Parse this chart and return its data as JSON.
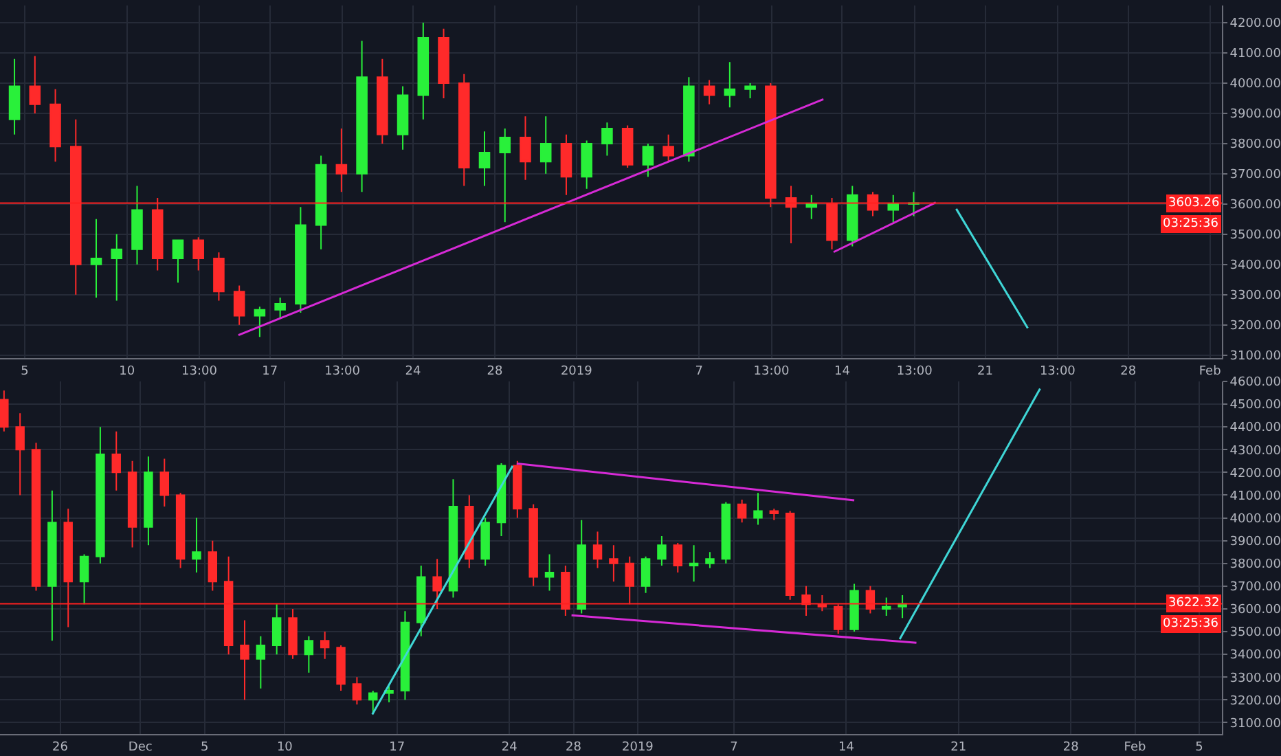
{
  "chart_data": [
    {
      "type": "candlestick",
      "grid": true,
      "x": [
        "2018-12-04T12:00",
        "2018-12-05T12:00",
        "2018-12-06T12:00",
        "2018-12-07T12:00",
        "2018-12-08T12:00",
        "2018-12-09T12:00",
        "2018-12-10T12:00",
        "2018-12-11T12:00",
        "2018-12-12T12:00",
        "2018-12-13T12:00",
        "2018-12-14T12:00",
        "2018-12-15T12:00",
        "2018-12-16T12:00",
        "2018-12-17T12:00",
        "2018-12-18T12:00",
        "2018-12-19T12:00",
        "2018-12-20T12:00",
        "2018-12-21T12:00",
        "2018-12-22T12:00",
        "2018-12-23T12:00",
        "2018-12-24T12:00",
        "2018-12-25T12:00",
        "2018-12-26T12:00",
        "2018-12-27T12:00",
        "2018-12-28T12:00",
        "2018-12-29T12:00",
        "2018-12-30T12:00",
        "2018-12-31T12:00",
        "2019-01-01T12:00",
        "2019-01-02T12:00",
        "2019-01-03T12:00",
        "2019-01-04T12:00",
        "2019-01-05T12:00",
        "2019-01-06T12:00",
        "2019-01-07T12:00",
        "2019-01-08T12:00",
        "2019-01-09T12:00",
        "2019-01-10T12:00",
        "2019-01-11T12:00",
        "2019-01-12T12:00",
        "2019-01-13T12:00",
        "2019-01-14T12:00",
        "2019-01-15T12:00",
        "2019-01-16T12:00",
        "2019-01-17T12:00"
      ],
      "ohlc": [
        [
          3880,
          4080,
          3830,
          3990
        ],
        [
          3990,
          4090,
          3900,
          3930
        ],
        [
          3930,
          3980,
          3740,
          3790
        ],
        [
          3790,
          3880,
          3300,
          3400
        ],
        [
          3400,
          3550,
          3290,
          3420
        ],
        [
          3420,
          3500,
          3280,
          3450
        ],
        [
          3450,
          3660,
          3400,
          3580
        ],
        [
          3580,
          3620,
          3380,
          3420
        ],
        [
          3420,
          3480,
          3340,
          3480
        ],
        [
          3480,
          3490,
          3380,
          3420
        ],
        [
          3420,
          3440,
          3280,
          3310
        ],
        [
          3310,
          3330,
          3200,
          3230
        ],
        [
          3230,
          3260,
          3160,
          3250
        ],
        [
          3250,
          3290,
          3220,
          3270
        ],
        [
          3270,
          3590,
          3240,
          3530
        ],
        [
          3530,
          3760,
          3450,
          3730
        ],
        [
          3730,
          3850,
          3640,
          3700
        ],
        [
          3700,
          4140,
          3640,
          4020
        ],
        [
          4020,
          4080,
          3800,
          3830
        ],
        [
          3830,
          3990,
          3780,
          3960
        ],
        [
          3960,
          4200,
          3880,
          4150
        ],
        [
          4150,
          4180,
          3950,
          4000
        ],
        [
          4000,
          4030,
          3660,
          3720
        ],
        [
          3720,
          3840,
          3660,
          3770
        ],
        [
          3770,
          3850,
          3540,
          3820
        ],
        [
          3820,
          3890,
          3680,
          3740
        ],
        [
          3740,
          3890,
          3700,
          3800
        ],
        [
          3800,
          3830,
          3630,
          3690
        ],
        [
          3690,
          3810,
          3650,
          3800
        ],
        [
          3800,
          3870,
          3760,
          3850
        ],
        [
          3850,
          3860,
          3720,
          3730
        ],
        [
          3730,
          3800,
          3690,
          3790
        ],
        [
          3790,
          3830,
          3740,
          3760
        ],
        [
          3760,
          4020,
          3740,
          3990
        ],
        [
          3990,
          4010,
          3930,
          3960
        ],
        [
          3960,
          4070,
          3920,
          3980
        ],
        [
          3980,
          4000,
          3950,
          3990
        ],
        [
          3990,
          4000,
          3590,
          3620
        ],
        [
          3620,
          3660,
          3470,
          3590
        ],
        [
          3590,
          3630,
          3550,
          3600
        ],
        [
          3600,
          3620,
          3450,
          3480
        ],
        [
          3480,
          3660,
          3460,
          3630
        ],
        [
          3630,
          3640,
          3560,
          3580
        ],
        [
          3580,
          3630,
          3540,
          3600
        ],
        [
          3600,
          3640,
          3560,
          3603.26
        ]
      ],
      "series": [
        {
          "type": "line",
          "x": [
            "2018-12-15T11:00",
            "2019-01-13T02:00"
          ],
          "values": [
            3166,
            3947
          ],
          "color": "#d62ad6",
          "marker": "none"
        },
        {
          "type": "line",
          "x": [
            "2019-01-13T14:00",
            "2019-01-18T14:00"
          ],
          "values": [
            3441,
            3605
          ],
          "color": "#d62ad6",
          "marker": "none"
        },
        {
          "type": "line",
          "x": [
            "2019-01-19T14:00",
            "2019-01-23T02:00"
          ],
          "values": [
            3584,
            3189
          ],
          "color": "#3fd6d6",
          "marker": "none"
        }
      ],
      "ref_lines": [
        {
          "axis": "y",
          "value": 3603.26,
          "label": "3603.26",
          "color": "#ff2020"
        }
      ],
      "annotations": [
        "03:25:36"
      ],
      "xlim": [
        "2018-12-03T19:00",
        "2019-02-01T14:00"
      ],
      "xticks": [
        {
          "value": "2018-12-05",
          "label": "5"
        },
        {
          "value": "2018-12-10",
          "label": "10"
        },
        {
          "value": "2018-12-13T13:00",
          "label": "13:00"
        },
        {
          "value": "2018-12-17",
          "label": "17"
        },
        {
          "value": "2018-12-20T13:00",
          "label": "13:00"
        },
        {
          "value": "2018-12-24",
          "label": "24"
        },
        {
          "value": "2018-12-28",
          "label": "28"
        },
        {
          "value": "2019-01-01",
          "label": "2019"
        },
        {
          "value": "2019-01-07",
          "label": "7"
        },
        {
          "value": "2019-01-10T13:00",
          "label": "13:00"
        },
        {
          "value": "2019-01-14",
          "label": "14"
        },
        {
          "value": "2019-01-17T13:00",
          "label": "13:00"
        },
        {
          "value": "2019-01-21",
          "label": "21"
        },
        {
          "value": "2019-01-24T13:00",
          "label": "13:00"
        },
        {
          "value": "2019-01-28",
          "label": "28"
        },
        {
          "value": "2019-02-01",
          "label": "Feb"
        }
      ],
      "ylim": [
        3090,
        4257
      ],
      "yticks": [
        {
          "value": 3100,
          "label": "3100.00"
        },
        {
          "value": 3200,
          "label": "3200.00"
        },
        {
          "value": 3300,
          "label": "3300.00"
        },
        {
          "value": 3400,
          "label": "3400.00"
        },
        {
          "value": 3500,
          "label": "3500.00"
        },
        {
          "value": 3600,
          "label": "3600.00"
        },
        {
          "value": 3700,
          "label": "3700.00"
        },
        {
          "value": 3800,
          "label": "3800.00"
        },
        {
          "value": 3900,
          "label": "3900.00"
        },
        {
          "value": 4000,
          "label": "4000.00"
        },
        {
          "value": 4100,
          "label": "4100.00"
        },
        {
          "value": 4200,
          "label": "4200.00"
        }
      ]
    },
    {
      "type": "candlestick",
      "grid": true,
      "x": [
        "2018-11-22T12:00",
        "2018-11-23T12:00",
        "2018-11-24T12:00",
        "2018-11-25T12:00",
        "2018-11-26T12:00",
        "2018-11-27T12:00",
        "2018-11-28T12:00",
        "2018-11-29T12:00",
        "2018-11-30T12:00",
        "2018-12-01T12:00",
        "2018-12-02T12:00",
        "2018-12-03T12:00",
        "2018-12-04T12:00",
        "2018-12-05T12:00",
        "2018-12-06T12:00",
        "2018-12-07T12:00",
        "2018-12-08T12:00",
        "2018-12-09T12:00",
        "2018-12-10T12:00",
        "2018-12-11T12:00",
        "2018-12-12T12:00",
        "2018-12-13T12:00",
        "2018-12-14T12:00",
        "2018-12-15T12:00",
        "2018-12-16T12:00",
        "2018-12-17T12:00",
        "2018-12-18T12:00",
        "2018-12-19T12:00",
        "2018-12-20T12:00",
        "2018-12-21T12:00",
        "2018-12-22T12:00",
        "2018-12-23T12:00",
        "2018-12-24T12:00",
        "2018-12-25T12:00",
        "2018-12-26T12:00",
        "2018-12-27T12:00",
        "2018-12-28T12:00",
        "2018-12-29T12:00",
        "2018-12-30T12:00",
        "2018-12-31T12:00",
        "2019-01-01T12:00",
        "2019-01-02T12:00",
        "2019-01-03T12:00",
        "2019-01-04T12:00",
        "2019-01-05T12:00",
        "2019-01-06T12:00",
        "2019-01-07T12:00",
        "2019-01-08T12:00",
        "2019-01-09T12:00",
        "2019-01-10T12:00",
        "2019-01-11T12:00",
        "2019-01-12T12:00",
        "2019-01-13T12:00",
        "2019-01-14T12:00",
        "2019-01-15T12:00",
        "2019-01-16T12:00",
        "2019-01-17T12:00"
      ],
      "ohlc": [
        [
          4520,
          4560,
          4380,
          4400
        ],
        [
          4400,
          4460,
          4100,
          4300
        ],
        [
          4300,
          4330,
          3680,
          3700
        ],
        [
          3700,
          4120,
          3460,
          3980
        ],
        [
          3980,
          4040,
          3520,
          3720
        ],
        [
          3720,
          3840,
          3620,
          3830
        ],
        [
          3830,
          4400,
          3800,
          4280
        ],
        [
          4280,
          4380,
          4120,
          4200
        ],
        [
          4200,
          4250,
          3870,
          3960
        ],
        [
          3960,
          4270,
          3880,
          4200
        ],
        [
          4200,
          4260,
          4050,
          4100
        ],
        [
          4100,
          4110,
          3780,
          3820
        ],
        [
          3820,
          4000,
          3760,
          3850
        ],
        [
          3850,
          3900,
          3680,
          3720
        ],
        [
          3720,
          3830,
          3400,
          3440
        ],
        [
          3440,
          3550,
          3200,
          3380
        ],
        [
          3380,
          3480,
          3250,
          3440
        ],
        [
          3440,
          3620,
          3400,
          3560
        ],
        [
          3560,
          3600,
          3380,
          3400
        ],
        [
          3400,
          3480,
          3320,
          3460
        ],
        [
          3460,
          3500,
          3380,
          3430
        ],
        [
          3430,
          3440,
          3240,
          3270
        ],
        [
          3270,
          3300,
          3180,
          3200
        ],
        [
          3200,
          3240,
          3140,
          3230
        ],
        [
          3230,
          3260,
          3190,
          3240
        ],
        [
          3240,
          3590,
          3200,
          3540
        ],
        [
          3540,
          3790,
          3480,
          3740
        ],
        [
          3740,
          3820,
          3600,
          3680
        ],
        [
          3680,
          4170,
          3650,
          4050
        ],
        [
          4050,
          4100,
          3780,
          3820
        ],
        [
          3820,
          4000,
          3790,
          3980
        ],
        [
          3980,
          4240,
          3920,
          4230
        ],
        [
          4230,
          4250,
          4000,
          4040
        ],
        [
          4040,
          4060,
          3700,
          3740
        ],
        [
          3740,
          3840,
          3680,
          3760
        ],
        [
          3760,
          3790,
          3570,
          3600
        ],
        [
          3600,
          3990,
          3580,
          3880
        ],
        [
          3880,
          3940,
          3780,
          3820
        ],
        [
          3820,
          3880,
          3720,
          3800
        ],
        [
          3800,
          3830,
          3620,
          3700
        ],
        [
          3700,
          3830,
          3670,
          3820
        ],
        [
          3820,
          3920,
          3790,
          3880
        ],
        [
          3880,
          3890,
          3760,
          3790
        ],
        [
          3790,
          3880,
          3720,
          3800
        ],
        [
          3800,
          3850,
          3780,
          3820
        ],
        [
          3820,
          4070,
          3800,
          4060
        ],
        [
          4060,
          4080,
          3980,
          4000
        ],
        [
          4000,
          4110,
          3970,
          4030
        ],
        [
          4030,
          4040,
          3990,
          4020
        ],
        [
          4020,
          4030,
          3640,
          3660
        ],
        [
          3660,
          3700,
          3570,
          3620
        ],
        [
          3620,
          3660,
          3590,
          3610
        ],
        [
          3610,
          3620,
          3490,
          3510
        ],
        [
          3510,
          3710,
          3500,
          3680
        ],
        [
          3680,
          3700,
          3580,
          3600
        ],
        [
          3600,
          3650,
          3570,
          3610
        ],
        [
          3610,
          3660,
          3560,
          3622.32
        ]
      ],
      "series": [
        {
          "type": "line",
          "x": [
            "2018-12-24T11:00",
            "2019-01-14T12:00"
          ],
          "values": [
            4239,
            4077
          ],
          "color": "#d62ad6",
          "marker": "none"
        },
        {
          "type": "line",
          "x": [
            "2018-12-27T21:00",
            "2019-01-18T09:00"
          ],
          "values": [
            3572,
            3451
          ],
          "color": "#d62ad6",
          "marker": "none"
        },
        {
          "type": "line",
          "x": [
            "2018-12-15T11:00",
            "2018-12-24T05:00"
          ],
          "values": [
            3136,
            4229
          ],
          "color": "#3fd6d6",
          "marker": "none"
        },
        {
          "type": "line",
          "x": [
            "2019-01-17T08:00",
            "2019-01-26T02:00"
          ],
          "values": [
            3467,
            4568
          ],
          "color": "#3fd6d6",
          "marker": "none"
        }
      ],
      "ref_lines": [
        {
          "axis": "y",
          "value": 3622.32,
          "label": "3622.32",
          "color": "#ff2020"
        }
      ],
      "annotations": [
        "03:25:36"
      ],
      "xlim": [
        "2018-11-22T06:00",
        "2019-02-06T10:00"
      ],
      "xticks": [
        {
          "value": "2018-11-26",
          "label": "26"
        },
        {
          "value": "2018-12-01",
          "label": "Dec"
        },
        {
          "value": "2018-12-05",
          "label": "5"
        },
        {
          "value": "2018-12-10",
          "label": "10"
        },
        {
          "value": "2018-12-17",
          "label": "17"
        },
        {
          "value": "2018-12-24",
          "label": "24"
        },
        {
          "value": "2018-12-28",
          "label": "28"
        },
        {
          "value": "2019-01-01",
          "label": "2019"
        },
        {
          "value": "2019-01-07",
          "label": "7"
        },
        {
          "value": "2019-01-14",
          "label": "14"
        },
        {
          "value": "2019-01-21",
          "label": "21"
        },
        {
          "value": "2019-01-28",
          "label": "28"
        },
        {
          "value": "2019-02-01",
          "label": "Feb"
        },
        {
          "value": "2019-02-05",
          "label": "5"
        }
      ],
      "ylim": [
        3050,
        4600
      ],
      "yticks": [
        {
          "value": 3100,
          "label": "3100.00"
        },
        {
          "value": 3200,
          "label": "3200.00"
        },
        {
          "value": 3300,
          "label": "3300.00"
        },
        {
          "value": 3400,
          "label": "3400.00"
        },
        {
          "value": 3500,
          "label": "3500.00"
        },
        {
          "value": 3600,
          "label": "3600.00"
        },
        {
          "value": 3700,
          "label": "3700.00"
        },
        {
          "value": 3800,
          "label": "3800.00"
        },
        {
          "value": 3900,
          "label": "3900.00"
        },
        {
          "value": 4000,
          "label": "4000.00"
        },
        {
          "value": 4100,
          "label": "4100.00"
        },
        {
          "value": 4200,
          "label": "4200.00"
        },
        {
          "value": 4300,
          "label": "4300.00"
        },
        {
          "value": 4400,
          "label": "4400.00"
        },
        {
          "value": 4500,
          "label": "4500.00"
        },
        {
          "value": 4600,
          "label": "4600.00"
        }
      ]
    }
  ]
}
